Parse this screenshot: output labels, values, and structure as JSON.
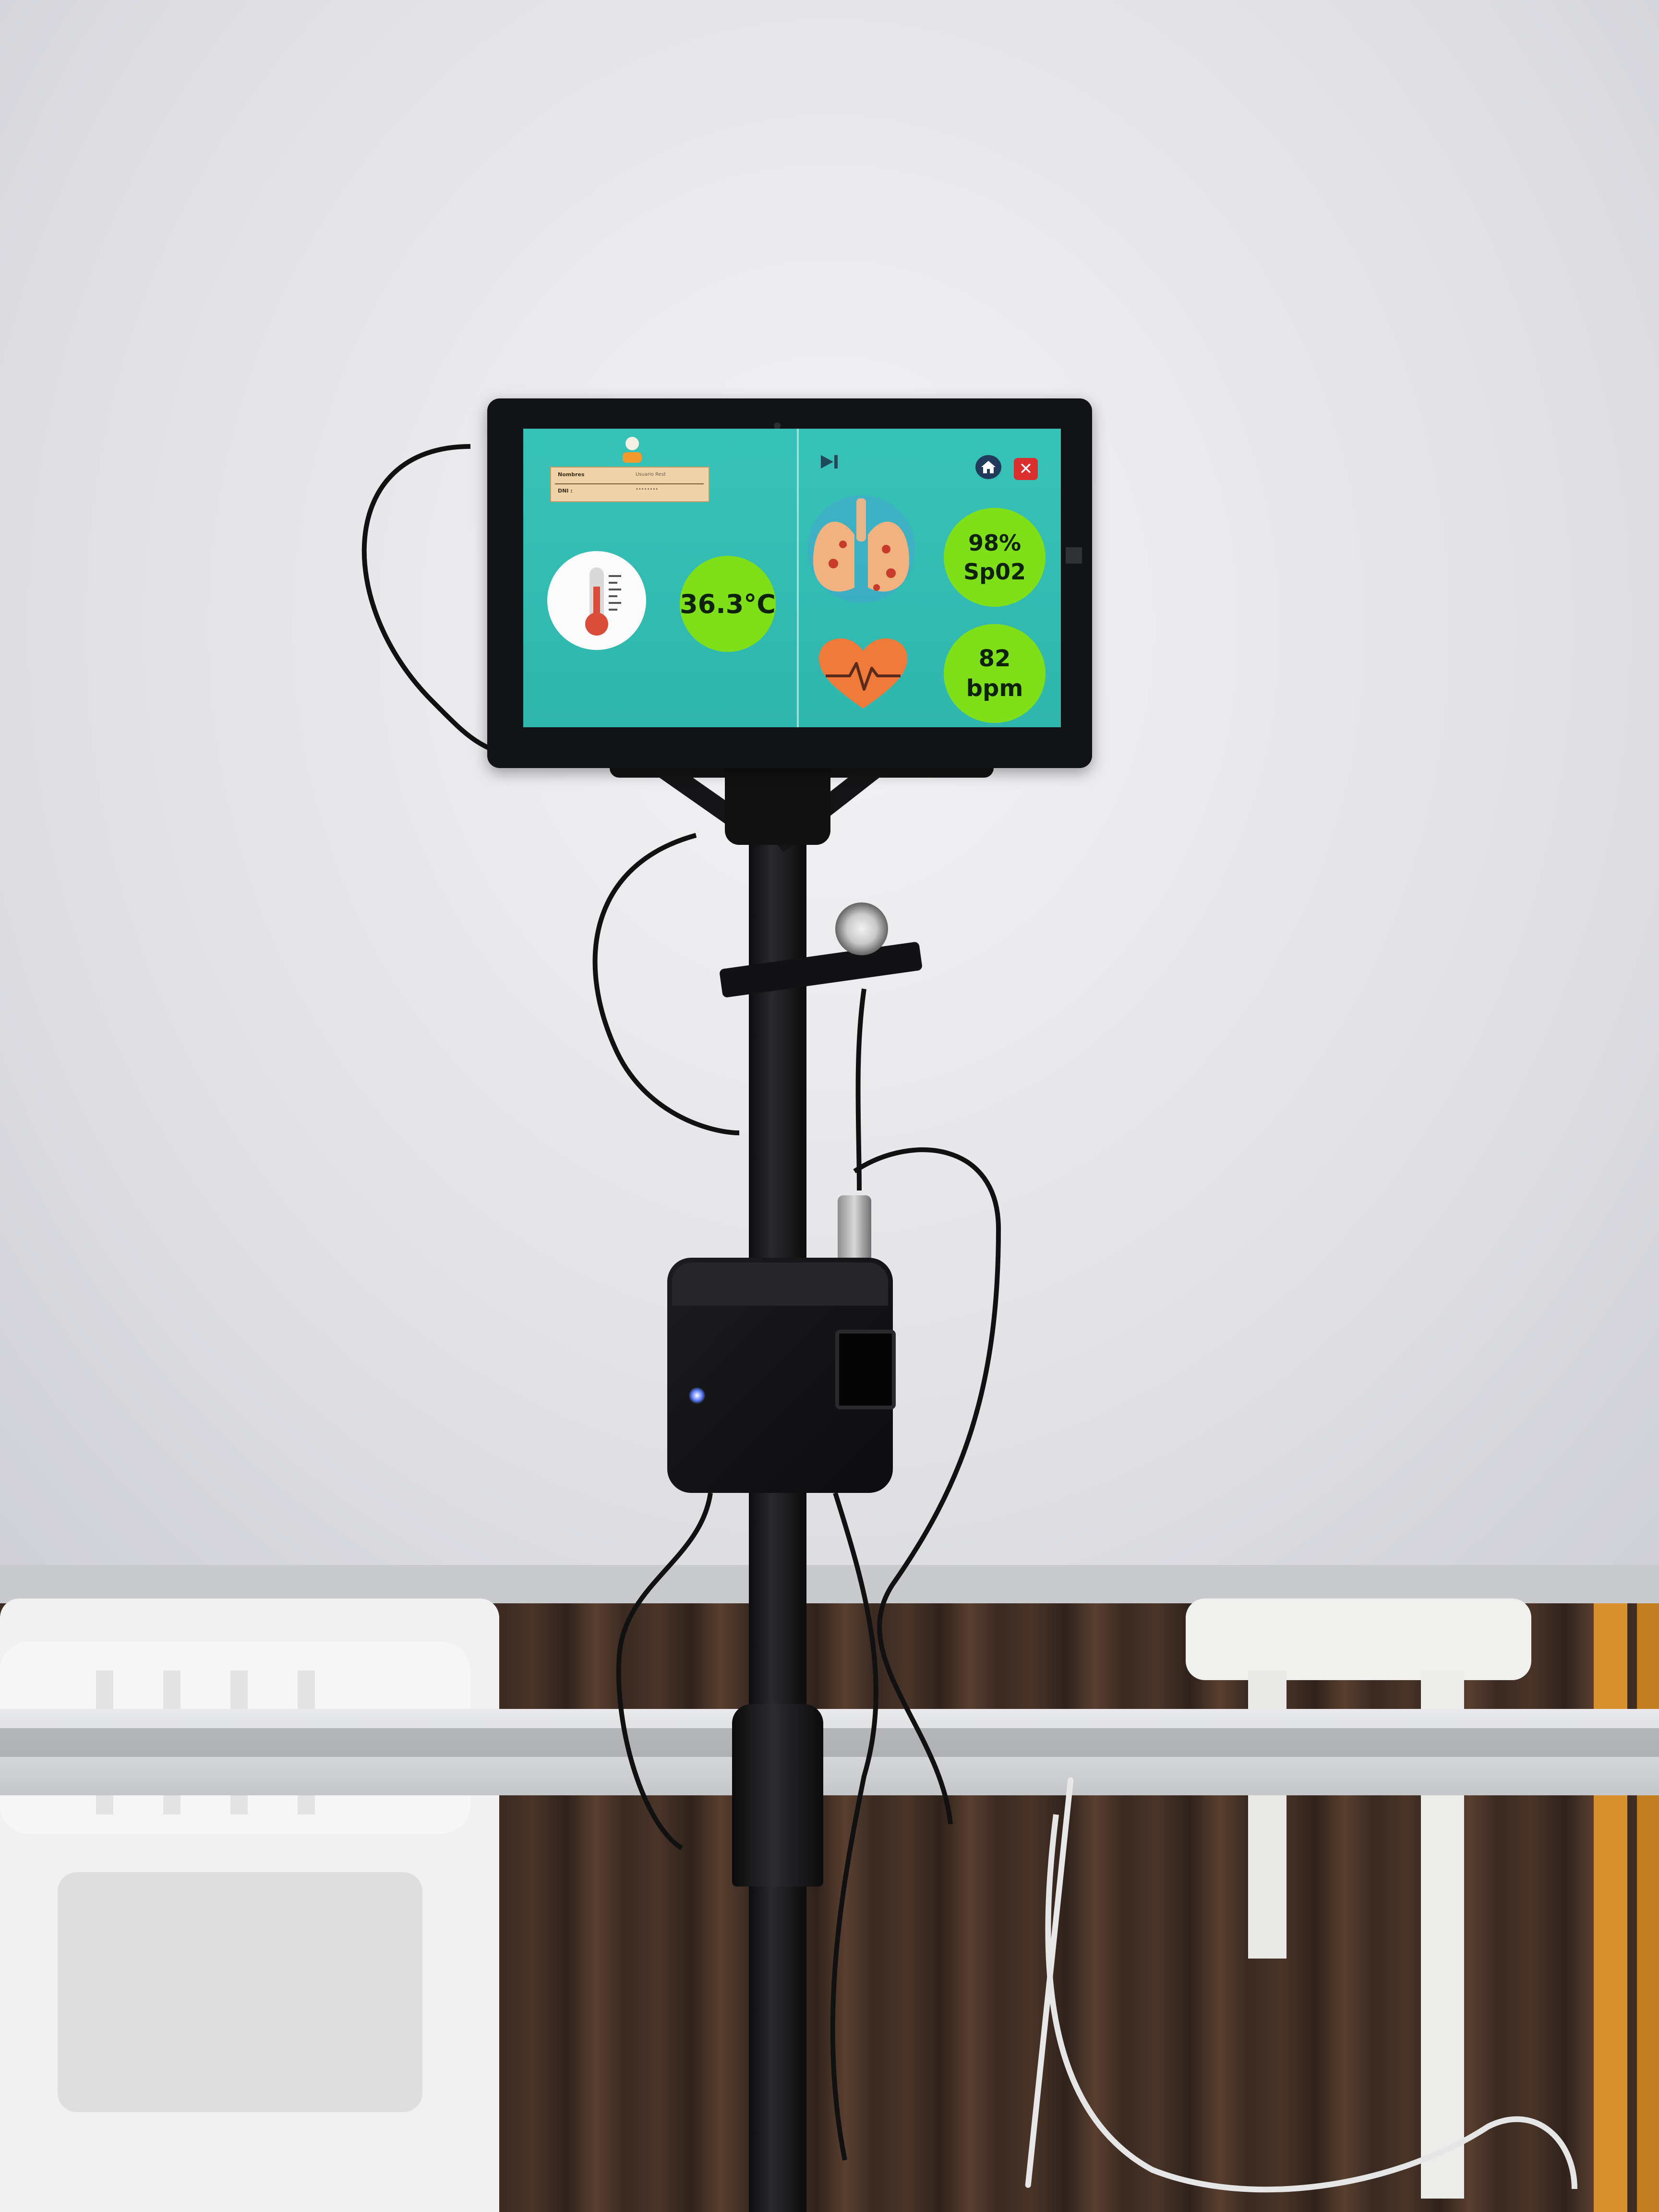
{
  "screen": {
    "user_card": {
      "name_label": "Nombres",
      "name_value": "Usuario Rest",
      "id_label": "DNI :",
      "id_value": "••••••••"
    },
    "temperature": {
      "value": "36.3°C"
    },
    "spo2": {
      "value": "98%",
      "unit": "Sp02"
    },
    "heart_rate": {
      "value": "82",
      "unit": "bpm"
    },
    "controls": {
      "home": "home-icon",
      "close": "close-icon",
      "skip": "skip-next-icon"
    },
    "colors": {
      "screen_bg": "#37c2b8",
      "value_circle": "#7fdf19",
      "close": "#d92f2f",
      "home": "#1f3a5a"
    }
  }
}
